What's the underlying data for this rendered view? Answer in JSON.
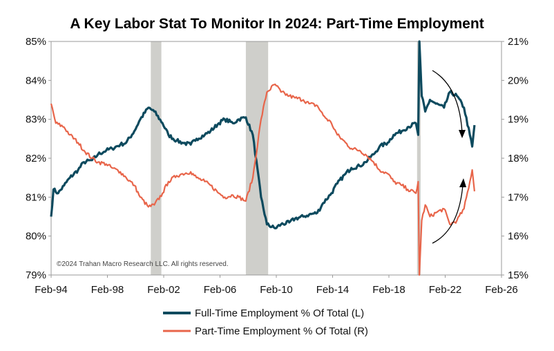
{
  "chart_data": {
    "type": "line",
    "title": "A Key Labor Stat To Monitor In 2024: Part-Time Employment",
    "credit": "©2024 Trahan Macro Research LLC. All rights reserved.",
    "x_ticks": [
      "Feb-94",
      "Feb-98",
      "Feb-02",
      "Feb-06",
      "Feb-10",
      "Feb-14",
      "Feb-18",
      "Feb-22",
      "Feb-26"
    ],
    "xlim": [
      "Feb-94",
      "Feb-26"
    ],
    "y_left": {
      "lim": [
        79,
        85
      ],
      "ticks": [
        "79%",
        "80%",
        "81%",
        "82%",
        "83%",
        "84%",
        "85%"
      ]
    },
    "y_right": {
      "lim": [
        15,
        21
      ],
      "ticks": [
        "15%",
        "16%",
        "17%",
        "18%",
        "19%",
        "20%",
        "21%"
      ]
    },
    "recessions": [
      {
        "start": "Mar-01",
        "end": "Nov-01"
      },
      {
        "start": "Dec-07",
        "end": "Jun-09"
      },
      {
        "start": "Feb-20",
        "end": "Apr-20"
      }
    ],
    "series": [
      {
        "name": "Full-Time Employment % Of Total (L)",
        "axis": "left",
        "color": "#0d4a5e",
        "points": [
          [
            "Feb-94",
            80.5
          ],
          [
            "Apr-94",
            81.2
          ],
          [
            "Aug-94",
            81.1
          ],
          [
            "Jan-95",
            81.3
          ],
          [
            "Jun-95",
            81.5
          ],
          [
            "Jan-96",
            81.7
          ],
          [
            "Jun-96",
            81.9
          ],
          [
            "Jan-97",
            81.95
          ],
          [
            "Jun-97",
            82.1
          ],
          [
            "Jan-98",
            82.2
          ],
          [
            "Jun-98",
            82.25
          ],
          [
            "Jan-99",
            82.35
          ],
          [
            "Jun-99",
            82.4
          ],
          [
            "Jan-00",
            82.7
          ],
          [
            "Jun-00",
            83.0
          ],
          [
            "Jan-01",
            83.3
          ],
          [
            "Jun-01",
            83.2
          ],
          [
            "Jan-02",
            82.9
          ],
          [
            "Jun-02",
            82.6
          ],
          [
            "Jan-03",
            82.45
          ],
          [
            "Jun-03",
            82.4
          ],
          [
            "Jan-04",
            82.35
          ],
          [
            "Jun-04",
            82.5
          ],
          [
            "Jan-05",
            82.6
          ],
          [
            "Jun-05",
            82.7
          ],
          [
            "Jan-06",
            82.9
          ],
          [
            "Jun-06",
            83.0
          ],
          [
            "Jan-07",
            82.9
          ],
          [
            "Jun-07",
            83.0
          ],
          [
            "Dec-07",
            83.05
          ],
          [
            "Jun-08",
            82.6
          ],
          [
            "Jan-09",
            81.0
          ],
          [
            "Jun-09",
            80.3
          ],
          [
            "Jan-10",
            80.2
          ],
          [
            "Jun-10",
            80.3
          ],
          [
            "Jan-11",
            80.35
          ],
          [
            "Jun-11",
            80.45
          ],
          [
            "Jan-12",
            80.5
          ],
          [
            "Jun-12",
            80.55
          ],
          [
            "Jan-13",
            80.6
          ],
          [
            "Jun-13",
            80.85
          ],
          [
            "Jan-14",
            81.1
          ],
          [
            "Jun-14",
            81.35
          ],
          [
            "Jan-15",
            81.6
          ],
          [
            "Jun-15",
            81.75
          ],
          [
            "Jan-16",
            81.8
          ],
          [
            "Jun-16",
            81.9
          ],
          [
            "Jan-17",
            82.1
          ],
          [
            "Jun-17",
            82.3
          ],
          [
            "Jan-18",
            82.4
          ],
          [
            "Jun-18",
            82.6
          ],
          [
            "Jan-19",
            82.7
          ],
          [
            "Jun-19",
            82.8
          ],
          [
            "Jan-20",
            82.9
          ],
          [
            "Mar-20",
            82.6
          ],
          [
            "Apr-20",
            85.0
          ],
          [
            "Jun-20",
            83.6
          ],
          [
            "Sep-20",
            83.2
          ],
          [
            "Jan-21",
            83.5
          ],
          [
            "Jun-21",
            83.4
          ],
          [
            "Jan-22",
            83.3
          ],
          [
            "Jun-22",
            83.7
          ],
          [
            "Dec-22",
            83.6
          ],
          [
            "Jun-23",
            83.3
          ],
          [
            "Nov-23",
            82.6
          ],
          [
            "Jan-24",
            82.3
          ],
          [
            "Mar-24",
            82.85
          ]
        ]
      },
      {
        "name": "Part-Time Employment % Of Total (R)",
        "axis": "right",
        "color": "#e8654a",
        "points": [
          [
            "Feb-94",
            19.4
          ],
          [
            "Jun-94",
            18.9
          ],
          [
            "Jan-95",
            18.8
          ],
          [
            "Jun-95",
            18.6
          ],
          [
            "Jan-96",
            18.4
          ],
          [
            "Jun-96",
            18.2
          ],
          [
            "Jan-97",
            18.0
          ],
          [
            "Jun-97",
            17.9
          ],
          [
            "Jan-98",
            17.85
          ],
          [
            "Jun-98",
            17.75
          ],
          [
            "Jan-99",
            17.65
          ],
          [
            "Jun-99",
            17.5
          ],
          [
            "Jan-00",
            17.3
          ],
          [
            "Jun-00",
            17.0
          ],
          [
            "Jan-01",
            16.75
          ],
          [
            "Jun-01",
            16.8
          ],
          [
            "Jan-02",
            17.1
          ],
          [
            "Jun-02",
            17.4
          ],
          [
            "Jan-03",
            17.55
          ],
          [
            "Jun-03",
            17.6
          ],
          [
            "Jan-04",
            17.65
          ],
          [
            "Jun-04",
            17.5
          ],
          [
            "Jan-05",
            17.4
          ],
          [
            "Jun-05",
            17.3
          ],
          [
            "Jan-06",
            17.1
          ],
          [
            "Jun-06",
            17.0
          ],
          [
            "Jan-07",
            17.05
          ],
          [
            "Jun-07",
            17.0
          ],
          [
            "Dec-07",
            16.9
          ],
          [
            "Jun-08",
            17.5
          ],
          [
            "Jan-09",
            19.0
          ],
          [
            "Jun-09",
            19.7
          ],
          [
            "Jan-10",
            19.9
          ],
          [
            "Jun-10",
            19.7
          ],
          [
            "Jan-11",
            19.6
          ],
          [
            "Jun-11",
            19.55
          ],
          [
            "Jan-12",
            19.5
          ],
          [
            "Jun-12",
            19.4
          ],
          [
            "Jan-13",
            19.35
          ],
          [
            "Jun-13",
            19.1
          ],
          [
            "Jan-14",
            18.9
          ],
          [
            "Jun-14",
            18.6
          ],
          [
            "Jan-15",
            18.4
          ],
          [
            "Jun-15",
            18.25
          ],
          [
            "Jan-16",
            18.2
          ],
          [
            "Jun-16",
            18.1
          ],
          [
            "Jan-17",
            17.9
          ],
          [
            "Jun-17",
            17.7
          ],
          [
            "Jan-18",
            17.6
          ],
          [
            "Jun-18",
            17.4
          ],
          [
            "Jan-19",
            17.3
          ],
          [
            "Jun-19",
            17.2
          ],
          [
            "Jan-20",
            17.1
          ],
          [
            "Mar-20",
            17.4
          ],
          [
            "Apr-20",
            15.0
          ],
          [
            "Jun-20",
            16.4
          ],
          [
            "Sep-20",
            16.8
          ],
          [
            "Jan-21",
            16.5
          ],
          [
            "Jun-21",
            16.6
          ],
          [
            "Jan-22",
            16.7
          ],
          [
            "Jun-22",
            16.3
          ],
          [
            "Dec-22",
            16.4
          ],
          [
            "Jun-23",
            16.7
          ],
          [
            "Nov-23",
            17.4
          ],
          [
            "Jan-24",
            17.7
          ],
          [
            "Mar-24",
            17.15
          ]
        ]
      }
    ]
  }
}
